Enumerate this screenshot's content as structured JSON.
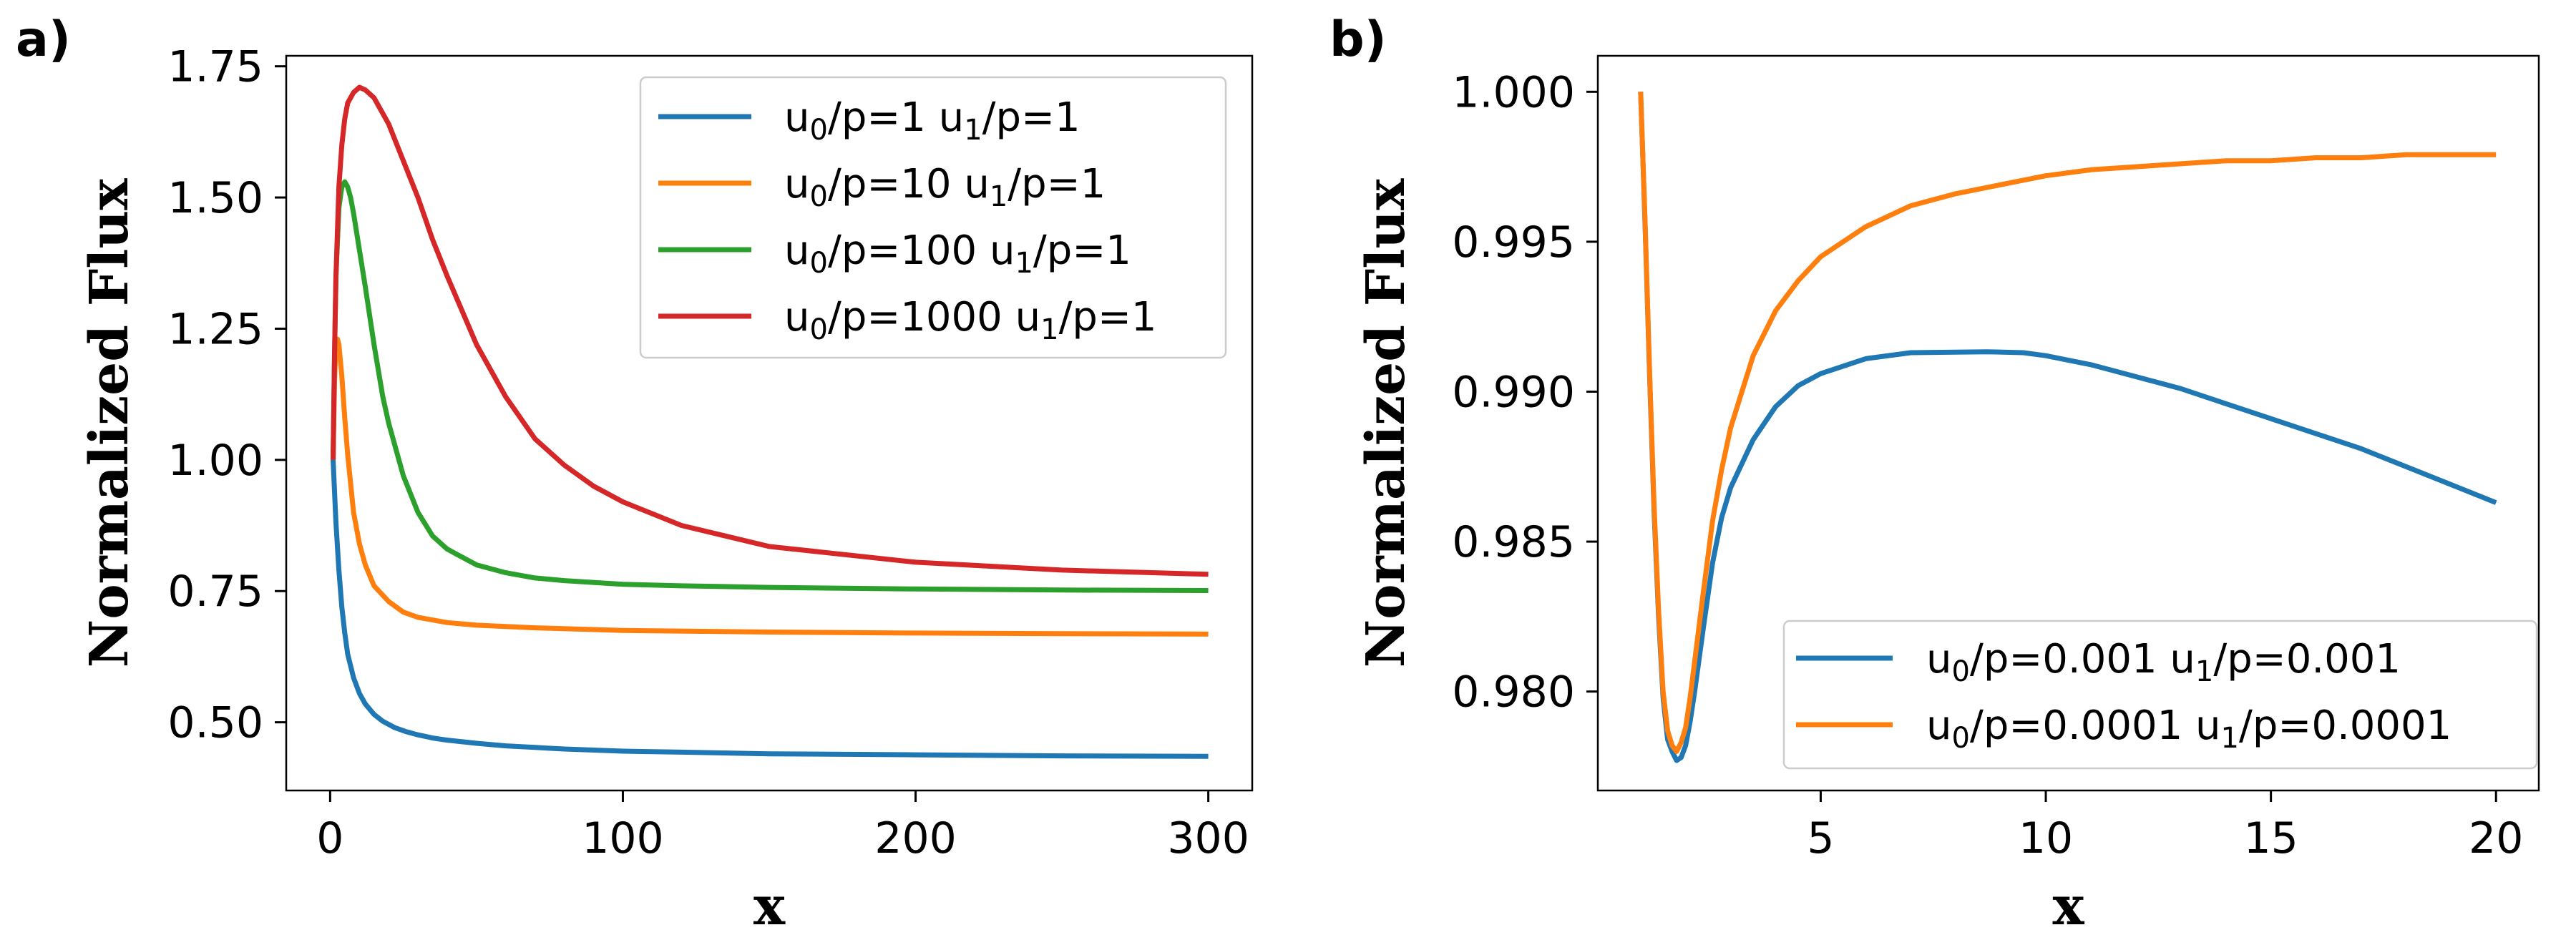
{
  "colors": {
    "blue": "#1f77b4",
    "orange": "#ff7f0e",
    "green": "#2ca02c",
    "red": "#d62728"
  },
  "chart_data": [
    {
      "panel_label": "a)",
      "type": "line",
      "xlabel": "x",
      "ylabel": "Normalized Flux",
      "xlim": [
        -15,
        315
      ],
      "ylim": [
        0.37,
        1.77
      ],
      "xticks": [
        0,
        100,
        200,
        300
      ],
      "xtick_labels": [
        "0",
        "100",
        "200",
        "300"
      ],
      "yticks": [
        0.5,
        0.75,
        1.0,
        1.25,
        1.5,
        1.75
      ],
      "ytick_labels": [
        "0.50",
        "0.75",
        "1.00",
        "1.25",
        "1.50",
        "1.75"
      ],
      "legend_position": "upper-right",
      "series": [
        {
          "name": "u0/p=1  u1/p=1",
          "legend": {
            "a": "u",
            "a_sub": "0",
            "b": "/p=1  u",
            "b_sub": "1",
            "c": "/p=1"
          },
          "color": "#1f77b4",
          "x": [
            1,
            2,
            3,
            4,
            5,
            6,
            8,
            10,
            12,
            15,
            18,
            22,
            26,
            30,
            35,
            40,
            50,
            60,
            70,
            80,
            100,
            120,
            150,
            200,
            250,
            300
          ],
          "y": [
            1.0,
            0.88,
            0.79,
            0.72,
            0.67,
            0.63,
            0.585,
            0.555,
            0.535,
            0.515,
            0.502,
            0.49,
            0.482,
            0.476,
            0.47,
            0.466,
            0.46,
            0.455,
            0.452,
            0.449,
            0.445,
            0.443,
            0.44,
            0.438,
            0.436,
            0.435
          ]
        },
        {
          "name": "u0/p=10  u1/p=1",
          "legend": {
            "a": "u",
            "a_sub": "0",
            "b": "/p=10  u",
            "b_sub": "1",
            "c": "/p=1"
          },
          "color": "#ff7f0e",
          "x": [
            1,
            1.5,
            2,
            2.5,
            3,
            4,
            5,
            6,
            8,
            10,
            12,
            15,
            20,
            25,
            30,
            40,
            50,
            70,
            100,
            150,
            200,
            250,
            300
          ],
          "y": [
            1.0,
            1.15,
            1.22,
            1.23,
            1.22,
            1.16,
            1.08,
            1.01,
            0.9,
            0.84,
            0.8,
            0.76,
            0.73,
            0.71,
            0.7,
            0.69,
            0.685,
            0.68,
            0.675,
            0.672,
            0.67,
            0.669,
            0.668
          ]
        },
        {
          "name": "u0/p=100  u1/p=1",
          "legend": {
            "a": "u",
            "a_sub": "0",
            "b": "/p=100  u",
            "b_sub": "1",
            "c": "/p=1"
          },
          "color": "#2ca02c",
          "x": [
            1,
            1.5,
            2,
            3,
            4,
            5,
            6,
            7,
            8,
            10,
            12,
            15,
            18,
            20,
            25,
            30,
            35,
            40,
            50,
            60,
            70,
            80,
            100,
            120,
            150,
            200,
            250,
            300
          ],
          "y": [
            1.0,
            1.2,
            1.35,
            1.48,
            1.52,
            1.53,
            1.52,
            1.5,
            1.47,
            1.4,
            1.33,
            1.22,
            1.12,
            1.07,
            0.97,
            0.9,
            0.855,
            0.83,
            0.8,
            0.785,
            0.775,
            0.77,
            0.763,
            0.76,
            0.757,
            0.754,
            0.752,
            0.751
          ]
        },
        {
          "name": "u0/p=1000  u1/p=1",
          "legend": {
            "a": "u",
            "a_sub": "0",
            "b": "/p=1000  u",
            "b_sub": "1",
            "c": "/p=1"
          },
          "color": "#d62728",
          "x": [
            1,
            1.5,
            2,
            3,
            4,
            5,
            6,
            8,
            10,
            12,
            15,
            18,
            20,
            25,
            30,
            35,
            40,
            50,
            60,
            70,
            80,
            90,
            100,
            120,
            150,
            200,
            250,
            300
          ],
          "y": [
            1.0,
            1.2,
            1.35,
            1.52,
            1.6,
            1.65,
            1.68,
            1.7,
            1.71,
            1.705,
            1.69,
            1.66,
            1.64,
            1.57,
            1.5,
            1.42,
            1.35,
            1.22,
            1.12,
            1.04,
            0.99,
            0.95,
            0.92,
            0.875,
            0.835,
            0.805,
            0.79,
            0.782
          ]
        }
      ]
    },
    {
      "panel_label": "b)",
      "type": "line",
      "xlabel": "x",
      "ylabel": "Normalized Flux",
      "xlim": [
        0.05,
        20.95
      ],
      "ylim": [
        0.9767,
        1.0012
      ],
      "xticks": [
        5,
        10,
        15,
        20
      ],
      "xtick_labels": [
        "5",
        "10",
        "15",
        "20"
      ],
      "yticks": [
        0.98,
        0.985,
        0.99,
        0.995,
        1.0
      ],
      "ytick_labels": [
        "0.980",
        "0.985",
        "0.990",
        "0.995",
        "1.000"
      ],
      "legend_position": "lower-right",
      "series": [
        {
          "name": "u0/p=0.001  u1/p=0.001",
          "legend": {
            "a": "u",
            "a_sub": "0",
            "b": "/p=0.001  u",
            "b_sub": "1",
            "c": "/p=0.001"
          },
          "color": "#1f77b4",
          "x": [
            1.0,
            1.1,
            1.2,
            1.3,
            1.4,
            1.5,
            1.6,
            1.7,
            1.8,
            1.9,
            2.0,
            2.1,
            2.2,
            2.4,
            2.6,
            2.8,
            3.0,
            3.5,
            4.0,
            4.5,
            5.0,
            6.0,
            7.0,
            8.0,
            8.7,
            9.5,
            10.0,
            11.0,
            12.0,
            13.0,
            14.0,
            15.0,
            16.0,
            17.0,
            18.0,
            19.0,
            20.0
          ],
          "y": [
            1.0,
            0.9955,
            0.9905,
            0.986,
            0.9825,
            0.9798,
            0.9784,
            0.978,
            0.9777,
            0.9778,
            0.9782,
            0.979,
            0.98,
            0.9822,
            0.9843,
            0.9858,
            0.9868,
            0.9884,
            0.9895,
            0.9902,
            0.9906,
            0.9911,
            0.9913,
            0.99132,
            0.99133,
            0.9913,
            0.9912,
            0.9909,
            0.9905,
            0.9901,
            0.9896,
            0.9891,
            0.9886,
            0.9881,
            0.9875,
            0.9869,
            0.9863
          ]
        },
        {
          "name": "u0/p=0.0001  u1/p=0.0001",
          "legend": {
            "a": "u",
            "a_sub": "0",
            "b": "/p=0.0001  u",
            "b_sub": "1",
            "c": "/p=0.0001"
          },
          "color": "#ff7f0e",
          "x": [
            1.0,
            1.1,
            1.2,
            1.3,
            1.4,
            1.5,
            1.6,
            1.7,
            1.8,
            1.9,
            2.0,
            2.1,
            2.2,
            2.4,
            2.6,
            2.8,
            3.0,
            3.5,
            4.0,
            4.5,
            5.0,
            6.0,
            7.0,
            8.0,
            9.0,
            10.0,
            11.0,
            12.0,
            13.0,
            14.0,
            15.0,
            16.0,
            17.0,
            18.0,
            19.0,
            20.0
          ],
          "y": [
            1.0,
            0.9956,
            0.9906,
            0.9862,
            0.9827,
            0.98,
            0.9787,
            0.9782,
            0.978,
            0.9783,
            0.9788,
            0.9798,
            0.981,
            0.9834,
            0.9857,
            0.9874,
            0.9888,
            0.9912,
            0.9927,
            0.9937,
            0.9945,
            0.9955,
            0.9962,
            0.9966,
            0.9969,
            0.9972,
            0.9974,
            0.9975,
            0.9976,
            0.9977,
            0.9977,
            0.9978,
            0.9978,
            0.9979,
            0.9979,
            0.9979
          ]
        }
      ]
    }
  ]
}
